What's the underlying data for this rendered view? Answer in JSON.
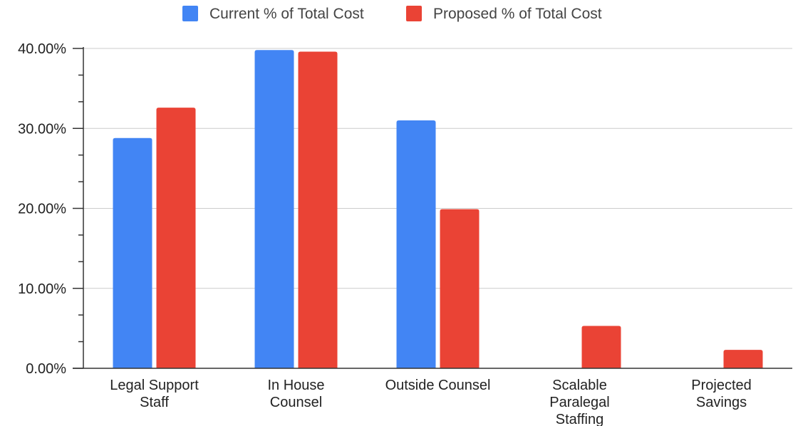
{
  "chart_data": {
    "type": "bar",
    "categories": [
      [
        "Legal Support",
        "Staff"
      ],
      [
        "In House",
        "Counsel"
      ],
      [
        "Outside Counsel"
      ],
      [
        "Scalable",
        "Paralegal",
        "Staffing"
      ],
      [
        "Projected",
        "Savings"
      ]
    ],
    "series": [
      {
        "name": "Current % of Total Cost",
        "color": "#4285f4",
        "values": [
          28.8,
          39.8,
          31.0,
          null,
          null
        ]
      },
      {
        "name": "Proposed % of Total Cost",
        "color": "#ea4335",
        "values": [
          32.6,
          39.6,
          19.9,
          5.3,
          2.3
        ]
      }
    ],
    "y_ticks": [
      "0.00%",
      "10.00%",
      "20.00%",
      "30.00%",
      "40.00%"
    ],
    "ylim": [
      0,
      40
    ],
    "title": "",
    "xlabel": "",
    "ylabel": "",
    "grid": true,
    "legend_position": "top"
  }
}
